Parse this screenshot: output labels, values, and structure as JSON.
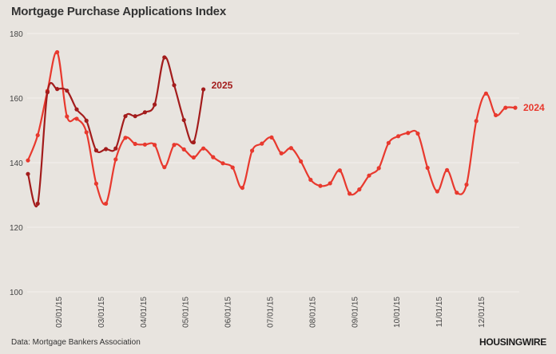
{
  "header": {
    "title": "Mortgage Purchase Applications Index"
  },
  "footer": {
    "source": "Data: Mortgage Bankers Association",
    "logo_text": "HOUSINGWIRE"
  },
  "colors": {
    "background": "#e8e4df",
    "series_2025": "#a31c1c",
    "series_2024": "#e8392e",
    "grid": "#f3f1ee"
  },
  "chart_data": {
    "type": "line",
    "title": "Mortgage Purchase Applications Index",
    "xlabel": "",
    "ylabel": "",
    "ylim": [
      100,
      180
    ],
    "yticks": [
      100,
      120,
      140,
      160,
      180
    ],
    "xticks": [
      "02/01/15",
      "03/01/15",
      "04/01/15",
      "05/01/15",
      "06/01/15",
      "07/01/15",
      "08/01/15",
      "09/01/15",
      "10/01/15",
      "11/01/15",
      "12/01/15"
    ],
    "grid": true,
    "x_unit": "week index (weekly data, starting early January)",
    "series": [
      {
        "name": "2025",
        "color": "#a31c1c",
        "values": [
          136.5,
          127.3,
          161.8,
          162.8,
          162.3,
          156.5,
          153.0,
          143.8,
          144.2,
          144.4,
          154.4,
          154.4,
          155.6,
          158.0,
          172.6,
          164.0,
          153.2,
          146.3,
          162.7
        ]
      },
      {
        "name": "2024",
        "color": "#e8392e",
        "values": [
          140.7,
          148.5,
          162.2,
          174.2,
          154.3,
          153.6,
          149.4,
          133.5,
          127.3,
          141.0,
          147.7,
          145.8,
          145.6,
          145.5,
          138.6,
          145.5,
          144.1,
          141.6,
          144.4,
          141.7,
          139.8,
          138.5,
          132.2,
          143.7,
          145.9,
          147.8,
          142.9,
          144.5,
          140.4,
          134.7,
          132.8,
          133.6,
          137.6,
          130.4,
          131.7,
          136.0,
          138.3,
          146.1,
          148.2,
          149.2,
          149.0,
          138.4,
          131.1,
          137.7,
          130.7,
          133.2,
          152.9,
          161.4,
          154.7,
          157.0,
          157.0
        ]
      }
    ]
  }
}
